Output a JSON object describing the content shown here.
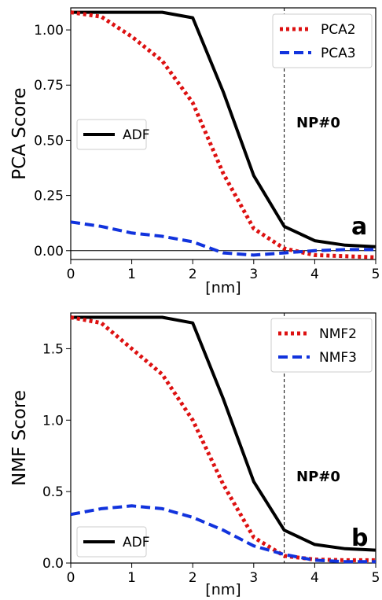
{
  "chart_data": [
    {
      "type": "line",
      "ylabel": "PCA Score",
      "xlabel": "[nm]",
      "xlim": [
        0,
        5
      ],
      "ylim": [
        -0.04,
        1.1
      ],
      "xticks": [
        "0",
        "1",
        "2",
        "3",
        "4",
        "5"
      ],
      "yticks": [
        "0.00",
        "0.25",
        "0.50",
        "0.75",
        "1.00"
      ],
      "ytick_values": [
        0,
        0.25,
        0.5,
        0.75,
        1.0
      ],
      "zero_line": true,
      "vline_x": 3.5,
      "annotation": "NP#0",
      "panel_letter": "a",
      "series": [
        {
          "name": "ADF",
          "color": "#000000",
          "style": "solid",
          "x": [
            0,
            0.5,
            1,
            1.5,
            2,
            2.5,
            3,
            3.5,
            4,
            4.5,
            5
          ],
          "y": [
            1.08,
            1.08,
            1.08,
            1.08,
            1.055,
            0.72,
            0.34,
            0.11,
            0.045,
            0.025,
            0.018
          ]
        },
        {
          "name": "PCA2",
          "color": "#dd1111",
          "style": "dotted",
          "x": [
            0,
            0.5,
            1,
            1.5,
            2,
            2.5,
            3,
            3.5,
            4,
            4.5,
            5
          ],
          "y": [
            1.08,
            1.06,
            0.97,
            0.86,
            0.67,
            0.35,
            0.1,
            0.01,
            -0.02,
            -0.025,
            -0.03
          ]
        },
        {
          "name": "PCA3",
          "color": "#1133dd",
          "style": "dashed",
          "x": [
            0,
            0.5,
            1,
            1.5,
            2,
            2.5,
            3,
            3.5,
            4,
            4.5,
            5
          ],
          "y": [
            0.13,
            0.11,
            0.08,
            0.065,
            0.04,
            -0.01,
            -0.02,
            -0.01,
            0.0,
            0.005,
            0.005
          ]
        }
      ]
    },
    {
      "type": "line",
      "ylabel": "NMF Score",
      "xlabel": "[nm]",
      "xlim": [
        0,
        5
      ],
      "ylim": [
        0,
        1.75
      ],
      "xticks": [
        "0",
        "1",
        "2",
        "3",
        "4",
        "5"
      ],
      "yticks": [
        "0.0",
        "0.5",
        "1.0",
        "1.5"
      ],
      "ytick_values": [
        0,
        0.5,
        1.0,
        1.5
      ],
      "zero_line": false,
      "vline_x": 3.5,
      "annotation": "NP#0",
      "panel_letter": "b",
      "series": [
        {
          "name": "ADF",
          "color": "#000000",
          "style": "solid",
          "x": [
            0,
            0.5,
            1,
            1.5,
            2,
            2.5,
            3,
            3.5,
            4,
            4.5,
            5
          ],
          "y": [
            1.72,
            1.72,
            1.72,
            1.72,
            1.68,
            1.15,
            0.57,
            0.23,
            0.13,
            0.1,
            0.09
          ]
        },
        {
          "name": "NMF2",
          "color": "#dd1111",
          "style": "dotted",
          "x": [
            0,
            0.5,
            1,
            1.5,
            2,
            2.5,
            3,
            3.5,
            4,
            4.5,
            5
          ],
          "y": [
            1.72,
            1.68,
            1.5,
            1.32,
            1.0,
            0.55,
            0.18,
            0.05,
            0.025,
            0.02,
            0.02
          ]
        },
        {
          "name": "NMF3",
          "color": "#1133dd",
          "style": "dashed",
          "x": [
            0,
            0.5,
            1,
            1.5,
            2,
            2.5,
            3,
            3.5,
            4,
            4.5,
            5
          ],
          "y": [
            0.34,
            0.38,
            0.4,
            0.38,
            0.32,
            0.23,
            0.12,
            0.06,
            0.02,
            0.01,
            0.01
          ]
        }
      ]
    }
  ],
  "legends": [
    {
      "top": [
        "PCA2",
        "PCA3"
      ],
      "bottom": [
        "ADF"
      ]
    },
    {
      "top": [
        "NMF2",
        "NMF3"
      ],
      "bottom": [
        "ADF"
      ]
    }
  ]
}
